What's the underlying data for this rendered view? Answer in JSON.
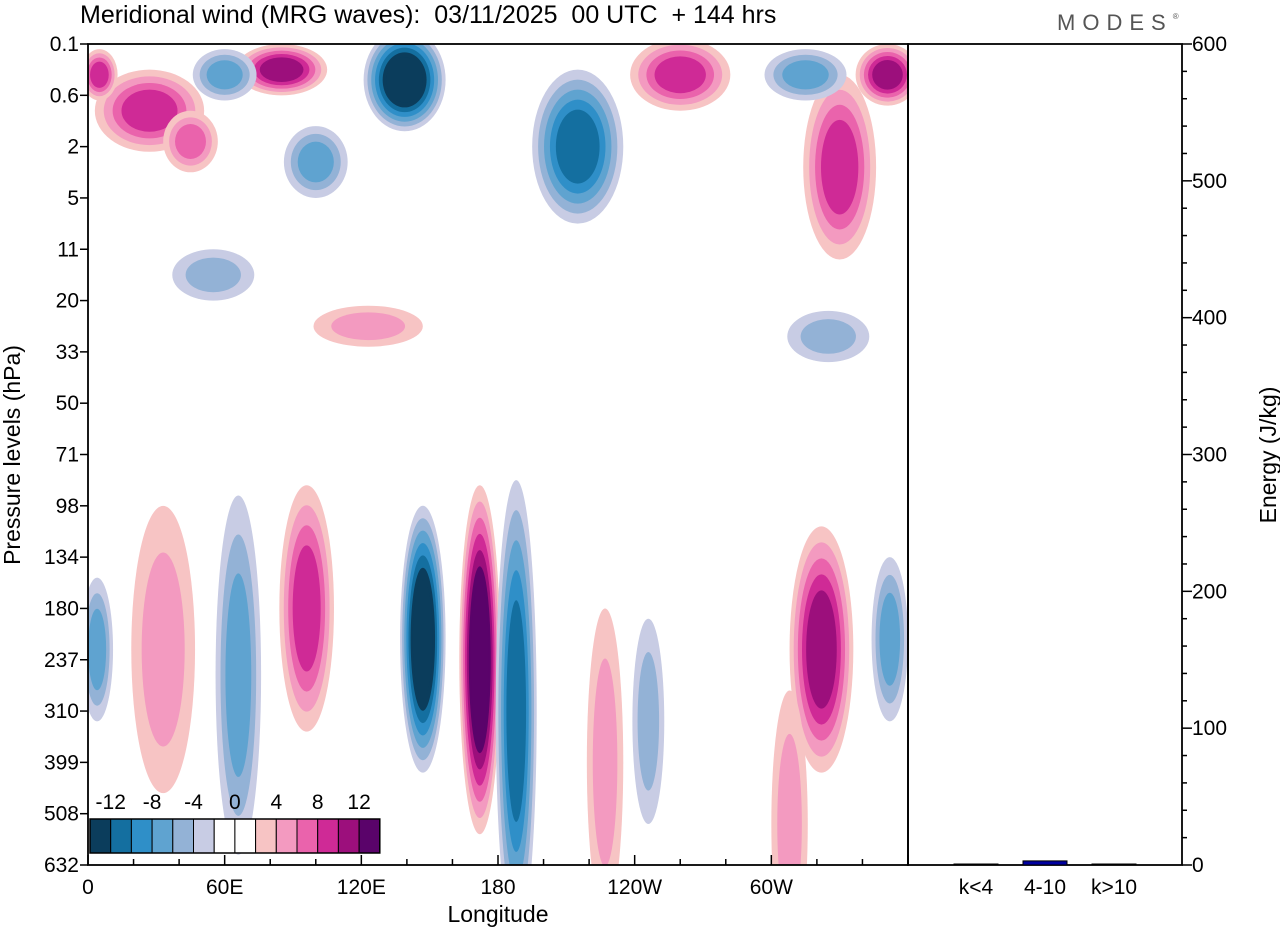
{
  "title": "Meridional wind (MRG waves):  03/11/2025  00 UTC  + 144 hrs",
  "logo": "MODES",
  "logo_mark": "®",
  "chart_data": [
    {
      "type": "heatmap",
      "title": "Meridional wind (MRG waves):  03/11/2025  00 UTC  + 144 hrs",
      "xlabel": "Longitude",
      "ylabel": "Pressure levels (hPa)",
      "x_ticks": [
        "0",
        "60E",
        "120E",
        "180",
        "120W",
        "60W"
      ],
      "x_tick_values": [
        0,
        60,
        120,
        180,
        240,
        300
      ],
      "xlim": [
        0,
        360
      ],
      "y_ticks": [
        "0.1",
        "0.6",
        "2",
        "5",
        "11",
        "20",
        "33",
        "50",
        "71",
        "98",
        "134",
        "180",
        "237",
        "310",
        "399",
        "508",
        "632"
      ],
      "colorbar": {
        "labels": [
          "-12",
          "-8",
          "-4",
          "0",
          "4",
          "8",
          "12"
        ],
        "colors": [
          "#0b3d5c",
          "#146fa0",
          "#2f8fc8",
          "#5fa3d0",
          "#93b2d6",
          "#c8cce4",
          "#ffffff",
          "#ffffff",
          "#f7c4c4",
          "#f39ac0",
          "#ea63ac",
          "#cf2a96",
          "#9c0f7c",
          "#5a036a"
        ]
      },
      "features": [
        {
          "lon": 147,
          "level_index": 11.6,
          "value": -14,
          "lon_width": 10,
          "level_span": 2.6
        },
        {
          "lon": 172,
          "level_index": 12.0,
          "value": 14,
          "lon_width": 9,
          "level_span": 3.4
        },
        {
          "lon": 188,
          "level_index": 13.0,
          "value": -9,
          "lon_width": 9,
          "level_span": 4.5
        },
        {
          "lon": 96,
          "level_index": 11.0,
          "value": 7,
          "lon_width": 12,
          "level_span": 2.4
        },
        {
          "lon": 66,
          "level_index": 12.3,
          "value": -6,
          "lon_width": 10,
          "level_span": 3.5
        },
        {
          "lon": 33,
          "level_index": 11.8,
          "value": 4,
          "lon_width": 14,
          "level_span": 2.8
        },
        {
          "lon": 4,
          "level_index": 11.8,
          "value": -5,
          "lon_width": 7,
          "level_span": 1.4
        },
        {
          "lon": 322,
          "level_index": 11.8,
          "value": 9,
          "lon_width": 14,
          "level_span": 2.4
        },
        {
          "lon": 352,
          "level_index": 11.6,
          "value": -5,
          "lon_width": 8,
          "level_span": 1.6
        },
        {
          "lon": 227,
          "level_index": 14.0,
          "value": 4,
          "lon_width": 8,
          "level_span": 3.0
        },
        {
          "lon": 246,
          "level_index": 13.2,
          "value": -4,
          "lon_width": 7,
          "level_span": 2.0
        },
        {
          "lon": 308,
          "level_index": 15.2,
          "value": 4,
          "lon_width": 8,
          "level_span": 2.6
        },
        {
          "lon": 139,
          "level_index": 0.7,
          "value": -13,
          "lon_width": 18,
          "level_span": 1.0
        },
        {
          "lon": 215,
          "level_index": 2.0,
          "value": -9,
          "lon_width": 20,
          "level_span": 1.5
        },
        {
          "lon": 27,
          "level_index": 1.3,
          "value": 8,
          "lon_width": 24,
          "level_span": 0.8
        },
        {
          "lon": 85,
          "level_index": 0.5,
          "value": 9,
          "lon_width": 20,
          "level_span": 0.5
        },
        {
          "lon": 330,
          "level_index": 2.4,
          "value": 8,
          "lon_width": 16,
          "level_span": 1.8
        },
        {
          "lon": 260,
          "level_index": 0.6,
          "value": 8,
          "lon_width": 22,
          "level_span": 0.7
        },
        {
          "lon": 351,
          "level_index": 0.6,
          "value": 10,
          "lon_width": 14,
          "level_span": 0.6
        },
        {
          "lon": 5,
          "level_index": 0.6,
          "value": 7,
          "lon_width": 8,
          "level_span": 0.5
        },
        {
          "lon": 315,
          "level_index": 0.6,
          "value": -6,
          "lon_width": 18,
          "level_span": 0.5
        },
        {
          "lon": 60,
          "level_index": 0.6,
          "value": -5,
          "lon_width": 14,
          "level_span": 0.5
        },
        {
          "lon": 45,
          "level_index": 1.9,
          "value": 6,
          "lon_width": 12,
          "level_span": 0.6
        },
        {
          "lon": 55,
          "level_index": 4.5,
          "value": -4,
          "lon_width": 18,
          "level_span": 0.5
        },
        {
          "lon": 123,
          "level_index": 5.5,
          "value": 4,
          "lon_width": 24,
          "level_span": 0.4
        },
        {
          "lon": 325,
          "level_index": 5.7,
          "value": -4,
          "lon_width": 18,
          "level_span": 0.5
        },
        {
          "lon": 100,
          "level_index": 2.3,
          "value": -5,
          "lon_width": 14,
          "level_span": 0.7
        }
      ]
    },
    {
      "type": "bar",
      "categories": [
        "k<4",
        "4-10",
        "k>10"
      ],
      "values": [
        0.5,
        3,
        0.5
      ],
      "ylabel": "Energy (J/kg)",
      "ylim": [
        0,
        600
      ],
      "y_ticks": [
        "0",
        "100",
        "200",
        "300",
        "400",
        "500",
        "600"
      ],
      "y_tick_values": [
        0,
        100,
        200,
        300,
        400,
        500,
        600
      ],
      "bar_color": "#0000a0"
    }
  ]
}
